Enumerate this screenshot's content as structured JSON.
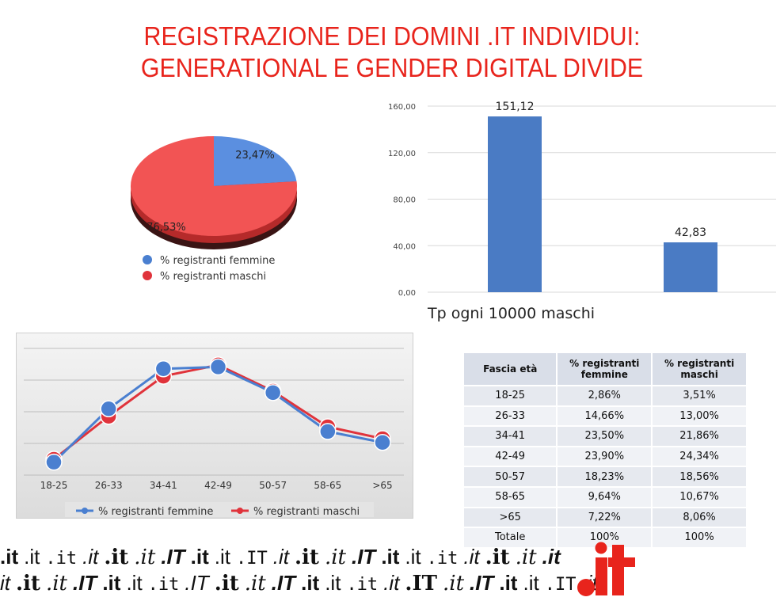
{
  "title": {
    "line1": "REGISTRAZIONE DEI DOMINI .IT INDIVIDUI:",
    "line2": "GENERATIONAL E GENDER DIGITAL DIVIDE"
  },
  "colors": {
    "title": "#e8241c",
    "blue": "#4a7fd0",
    "red": "#e0333b",
    "bar": "#4a7bc4",
    "pie_blue": "#5b8fe0",
    "pie_red": "#f25454"
  },
  "chart_data": [
    {
      "type": "pie",
      "series": [
        {
          "name": "% registranti femmine",
          "value": 23.47,
          "label": "23,47%"
        },
        {
          "name": "% registranti maschi",
          "value": 76.53,
          "label": "76,53%"
        }
      ],
      "legend": "below"
    },
    {
      "type": "bar",
      "categories": [
        "",
        ""
      ],
      "values": [
        151.12,
        42.83
      ],
      "value_labels": [
        "151,12",
        "42,83"
      ],
      "ylim": [
        0,
        160
      ],
      "yticks": [
        "0,00",
        "40,00",
        "80,00",
        "120,00",
        "160,00"
      ],
      "ytick_values": [
        0,
        40,
        80,
        120,
        160
      ],
      "xlabel": "Tp ogni 10000 maschi",
      "grid": true
    },
    {
      "type": "line",
      "categories": [
        "18-25",
        "26-33",
        "34-41",
        "42-49",
        "50-57",
        "58-65",
        ">65"
      ],
      "series": [
        {
          "name": "% registranti femmine",
          "values": [
            2.86,
            14.66,
            23.5,
            23.9,
            18.23,
            9.64,
            7.22
          ]
        },
        {
          "name": "% registranti maschi",
          "values": [
            3.51,
            13.0,
            21.86,
            24.34,
            18.56,
            10.67,
            8.06
          ]
        }
      ],
      "ylim": [
        0,
        28
      ],
      "grid": true,
      "legend": "bottom"
    },
    {
      "type": "table",
      "headers": [
        "Fascia età",
        "% registranti femmine",
        "% registranti maschi"
      ],
      "rows": [
        [
          "18-25",
          "2,86%",
          "3,51%"
        ],
        [
          "26-33",
          "14,66%",
          "13,00%"
        ],
        [
          "34-41",
          "23,50%",
          "21,86%"
        ],
        [
          "42-49",
          "23,90%",
          "24,34%"
        ],
        [
          "50-57",
          "18,23%",
          "18,56%"
        ],
        [
          "58-65",
          "9,64%",
          "10,67%"
        ],
        [
          ">65",
          "7,22%",
          "8,06%"
        ],
        [
          "Totale",
          "100%",
          "100%"
        ]
      ]
    }
  ],
  "footer": {
    "row1": [
      ".it",
      ".it",
      ".it",
      ".it",
      ".it",
      ".it",
      ".IT",
      ".it",
      ".it",
      ".IT",
      ".it",
      ".it",
      ".it",
      ".IT",
      ".it",
      ".it",
      ".it",
      ".it",
      ".it",
      ".it",
      ".it"
    ],
    "row2": [
      "it",
      ".it",
      ".it",
      ".IT",
      ".it",
      ".it",
      ".it",
      ".IT",
      ".it",
      ".it",
      ".IT",
      ".it",
      ".it",
      ".it",
      ".it",
      ".IT",
      ".it",
      ".IT",
      ".it",
      ".it",
      ".IT",
      ".it"
    ],
    "logo": "it"
  }
}
